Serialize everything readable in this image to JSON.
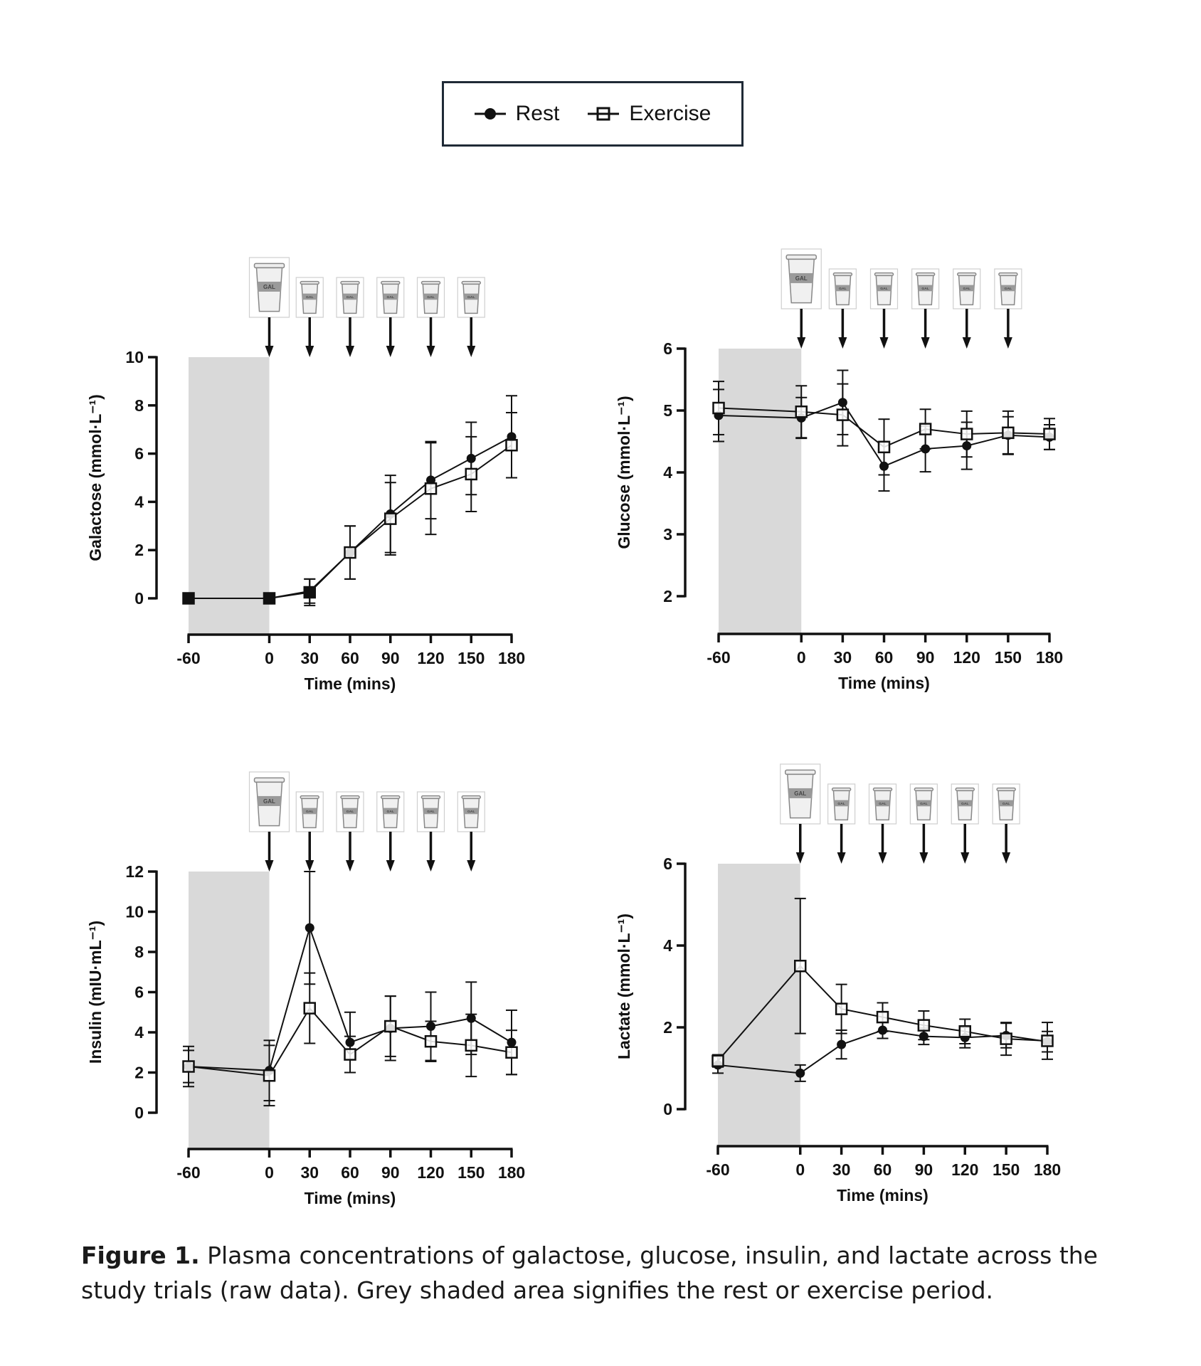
{
  "legend": {
    "rest": "Rest",
    "exercise": "Exercise"
  },
  "caption": {
    "label": "Figure 1.",
    "text": " Plasma concentrations of galactose, glucose, insulin, and lactate across the study trials (raw data). Grey shaded area signifies the rest or exercise period."
  },
  "cup_label": "GAL",
  "colors": {
    "shade": "#d9d9d9",
    "line": "#111111",
    "legend_border": "#1f2a36"
  },
  "chart_data": [
    {
      "type": "line",
      "title": "Galactose",
      "ylabel": "Galactose (mmol·L⁻¹)",
      "xlabel": "Time (mins)",
      "x": [
        -60,
        0,
        30,
        60,
        90,
        120,
        150,
        180
      ],
      "xticks": [
        "-60",
        "0",
        "30",
        "60",
        "90",
        "120",
        "150",
        "180"
      ],
      "yticks": [
        "0",
        "2",
        "4",
        "6",
        "8",
        "10"
      ],
      "ylim": [
        0,
        10
      ],
      "shaded_period": [
        -60,
        0
      ],
      "drink_times": [
        0,
        30,
        60,
        90,
        120,
        150
      ],
      "series": [
        {
          "name": "Rest",
          "marker": "filled-circle",
          "values": [
            0,
            0,
            0.3,
            1.9,
            3.5,
            4.9,
            5.8,
            6.7
          ],
          "error": [
            0,
            0,
            0.5,
            1.1,
            1.6,
            1.6,
            1.5,
            1.7
          ]
        },
        {
          "name": "Exercise",
          "marker": "open-square",
          "values": [
            0,
            0,
            0.25,
            1.9,
            3.3,
            4.55,
            5.15,
            6.35
          ],
          "error": [
            0,
            0,
            0.55,
            1.1,
            1.5,
            1.9,
            1.55,
            1.35
          ]
        }
      ]
    },
    {
      "type": "line",
      "title": "Glucose",
      "ylabel": "Glucose (mmol·L⁻¹)",
      "xlabel": "Time (mins)",
      "x": [
        -60,
        0,
        30,
        60,
        90,
        120,
        150,
        180
      ],
      "xticks": [
        "-60",
        "0",
        "30",
        "60",
        "90",
        "120",
        "150",
        "180"
      ],
      "yticks": [
        "2",
        "3",
        "4",
        "5",
        "6"
      ],
      "ylim": [
        2,
        6
      ],
      "shaded_period": [
        -60,
        0
      ],
      "drink_times": [
        0,
        30,
        60,
        90,
        120,
        150
      ],
      "series": [
        {
          "name": "Rest",
          "marker": "filled-circle",
          "values": [
            4.92,
            4.88,
            5.13,
            4.1,
            4.38,
            4.43,
            4.6,
            4.57
          ],
          "error": [
            0.42,
            0.33,
            0.52,
            0.4,
            0.37,
            0.38,
            0.3,
            0.2
          ]
        },
        {
          "name": "Exercise",
          "marker": "open-square",
          "values": [
            5.04,
            4.98,
            4.93,
            4.41,
            4.7,
            4.62,
            4.64,
            4.62
          ],
          "error": [
            0.43,
            0.42,
            0.5,
            0.45,
            0.32,
            0.37,
            0.35,
            0.25
          ]
        }
      ]
    },
    {
      "type": "line",
      "title": "Insulin",
      "ylabel": "Insulin (mIU·mL⁻¹)",
      "xlabel": "Time (mins)",
      "x": [
        -60,
        0,
        30,
        60,
        90,
        120,
        150,
        180
      ],
      "xticks": [
        "-60",
        "0",
        "30",
        "60",
        "90",
        "120",
        "150",
        "180"
      ],
      "yticks": [
        "0",
        "2",
        "4",
        "6",
        "8",
        "10",
        "12"
      ],
      "ylim": [
        0,
        12
      ],
      "shaded_period": [
        -60,
        0
      ],
      "drink_times": [
        0,
        30,
        60,
        90,
        120,
        150
      ],
      "series": [
        {
          "name": "Rest",
          "marker": "filled-circle",
          "values": [
            2.3,
            2.1,
            9.2,
            3.5,
            4.2,
            4.3,
            4.7,
            3.5
          ],
          "error": [
            1.0,
            1.5,
            2.8,
            1.5,
            1.6,
            1.7,
            1.8,
            1.6
          ]
        },
        {
          "name": "Exercise",
          "marker": "open-square",
          "values": [
            2.3,
            1.85,
            5.2,
            2.9,
            4.3,
            3.55,
            3.35,
            3.0
          ],
          "error": [
            0.8,
            1.5,
            1.75,
            0.9,
            1.5,
            1.0,
            1.55,
            1.1
          ]
        }
      ]
    },
    {
      "type": "line",
      "title": "Lactate",
      "ylabel": "Lactate (mmol·L⁻¹)",
      "xlabel": "Time (mins)",
      "x": [
        -60,
        0,
        30,
        60,
        90,
        120,
        150,
        180
      ],
      "xticks": [
        "-60",
        "0",
        "30",
        "60",
        "90",
        "120",
        "150",
        "180"
      ],
      "yticks": [
        "0",
        "2",
        "4",
        "6"
      ],
      "ylim": [
        0,
        6
      ],
      "shaded_period": [
        -60,
        0
      ],
      "drink_times": [
        0,
        30,
        60,
        90,
        120,
        150
      ],
      "series": [
        {
          "name": "Rest",
          "marker": "filled-circle",
          "values": [
            1.08,
            0.88,
            1.58,
            1.93,
            1.78,
            1.75,
            1.8,
            1.65
          ],
          "error": [
            0.2,
            0.2,
            0.35,
            0.2,
            0.2,
            0.25,
            0.3,
            0.25
          ]
        },
        {
          "name": "Exercise",
          "marker": "open-square",
          "values": [
            1.18,
            3.5,
            2.45,
            2.25,
            2.05,
            1.9,
            1.72,
            1.67
          ],
          "error": [
            0.15,
            1.65,
            0.6,
            0.35,
            0.35,
            0.3,
            0.4,
            0.45
          ]
        }
      ]
    }
  ]
}
